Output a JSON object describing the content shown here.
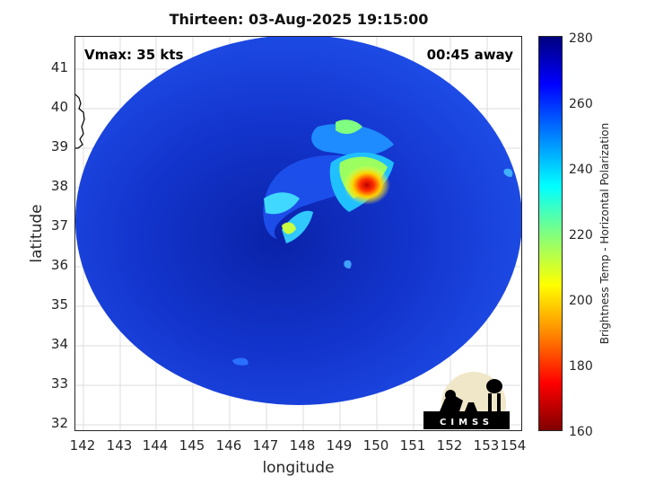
{
  "title": "Thirteen: 03-Aug-2025 19:15:00",
  "vmax_label": "Vmax: 35 kts",
  "time_away_label": "00:45 away",
  "xlabel": "longitude",
  "ylabel": "latitude",
  "x_ticks": [
    "142",
    "143",
    "144",
    "145",
    "146",
    "147",
    "148",
    "149",
    "150",
    "151",
    "152",
    "153",
    "154"
  ],
  "y_ticks": [
    "41",
    "40",
    "39",
    "38",
    "37",
    "36",
    "35",
    "34",
    "33",
    "32"
  ],
  "colorbar": {
    "label": "Brightness Temp - Horizontal Polarization",
    "ticks": [
      "280",
      "260",
      "240",
      "220",
      "200",
      "180",
      "160"
    ]
  },
  "logo_text": "CIMSS",
  "colors": {
    "swath_blue": "#1a3fe0",
    "deep_blue": "#1028b0",
    "hot_red": "#c80000"
  }
}
